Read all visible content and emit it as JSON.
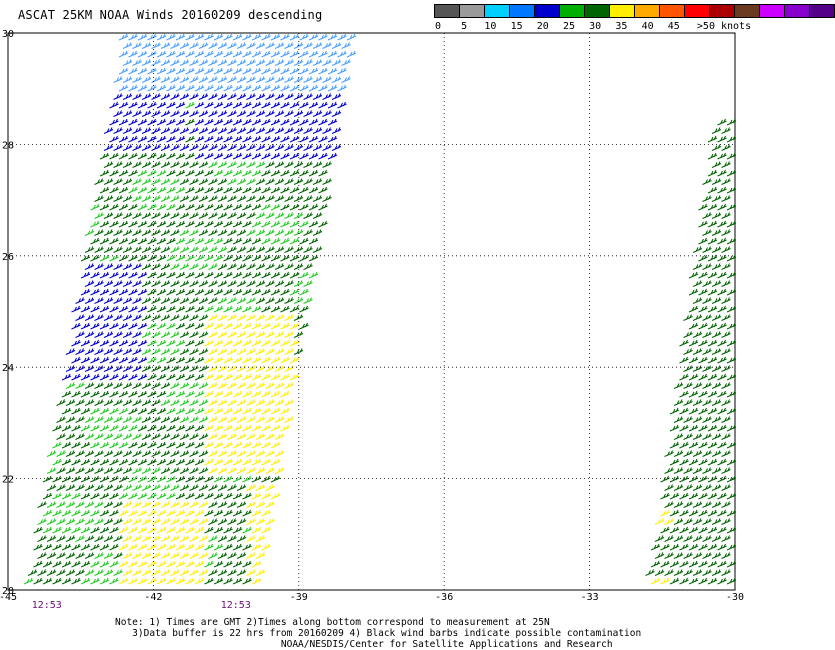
{
  "title": "ASCAT 25KM NOAA Winds 20160209 descending",
  "legend": {
    "colors": [
      "#555555",
      "#9a9a9a",
      "#00d0ff",
      "#0077ff",
      "#0000cc",
      "#00b000",
      "#006400",
      "#ffee00",
      "#ffaa00",
      "#ff5500",
      "#ff0000",
      "#aa0000",
      "#6a3a20",
      "#cc00ff",
      "#8800cc",
      "#550088"
    ],
    "labels": [
      "0",
      "5",
      "10",
      "15",
      "20",
      "25",
      "30",
      "35",
      "40",
      "45",
      ">50 knots"
    ]
  },
  "map": {
    "lon_min": -45,
    "lon_max": -30,
    "lat_min": 20,
    "lat_max": 30,
    "x_ticks": [
      "-45",
      "-42",
      "-39",
      "-36",
      "-33",
      "-30"
    ],
    "y_ticks": [
      "30",
      "28",
      "26",
      "24",
      "22",
      "20"
    ],
    "grid": "dotted",
    "time_labels": [
      {
        "text": "12:53",
        "lon": -44.2
      },
      {
        "text": "12:53",
        "lon": -40.3
      }
    ]
  },
  "swaths": [
    {
      "name": "main-swath",
      "corners": [
        [
          -42.6,
          30
        ],
        [
          -37.8,
          30
        ],
        [
          -39.8,
          20
        ],
        [
          -44.6,
          20
        ]
      ]
    },
    {
      "name": "east-swath",
      "corners": [
        [
          -30.4,
          28.5
        ],
        [
          -30,
          28.5
        ],
        [
          -30,
          20
        ],
        [
          -31.8,
          20
        ]
      ]
    }
  ],
  "wind_color_key": {
    "light_blue": "#4aa0ff",
    "blue": "#0000cc",
    "green": "#22cc22",
    "dark_green": "#006400",
    "yellow": "#ffee00"
  },
  "notes": [
    "Note: 1) Times are GMT 2)Times along bottom correspond to measurement at 25N",
    "3)Data buffer is 22 hrs from 20160209 4) Black wind barbs indicate possible contamination",
    "NOAA/NESDIS/Center for Satellite Applications and Research"
  ]
}
